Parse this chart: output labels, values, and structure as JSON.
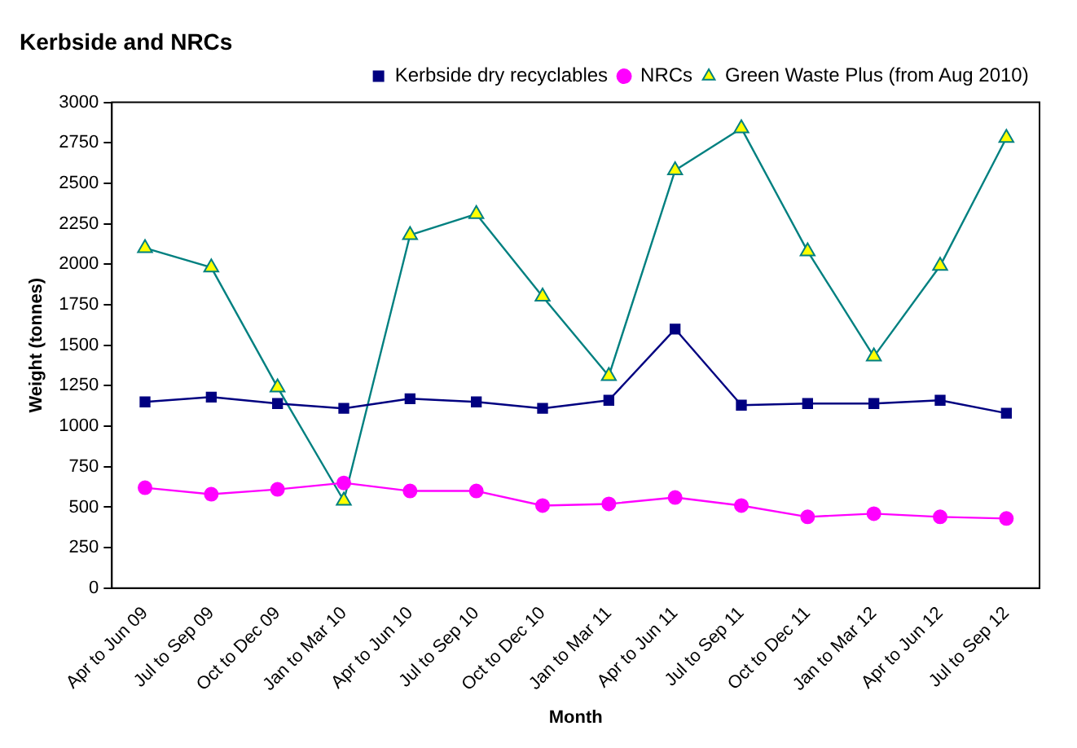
{
  "chart_data": {
    "type": "line",
    "title": "Kerbside and NRCs",
    "xlabel": "Month",
    "ylabel": "Weight (tonnes)",
    "categories": [
      "Apr to Jun 09",
      "Jul to Sep 09",
      "Oct to Dec 09",
      "Jan to Mar 10",
      "Apr to Jun 10",
      "Jul to Sep 10",
      "Oct to Dec 10",
      "Jan to Mar 11",
      "Apr to Jun 11",
      "Jul to Sep 11",
      "Oct to Dec 11",
      "Jan to Mar 12",
      "Apr to Jun 12",
      "Jul to Sep 12"
    ],
    "series": [
      {
        "name": "Kerbside dry recyclables",
        "color": "#000080",
        "marker": "square",
        "values": [
          1150,
          1180,
          1140,
          1110,
          1170,
          1150,
          1110,
          1160,
          1600,
          1130,
          1140,
          1140,
          1160,
          1080
        ]
      },
      {
        "name": "NRCs",
        "color": "#ff00ff",
        "marker": "circle",
        "values": [
          620,
          580,
          610,
          650,
          600,
          600,
          510,
          520,
          560,
          510,
          440,
          460,
          440,
          430
        ]
      },
      {
        "name": "Green Waste Plus (from Aug 2010)",
        "color": "#008080",
        "marker": "triangle",
        "values": [
          2100,
          1980,
          1240,
          540,
          2180,
          2310,
          1800,
          1310,
          2580,
          2840,
          2080,
          1430,
          1990,
          2780
        ]
      }
    ],
    "ylim": [
      0,
      3000
    ],
    "yticks": [
      0,
      250,
      500,
      750,
      1000,
      1250,
      1500,
      1750,
      2000,
      2250,
      2500,
      2750,
      3000
    ],
    "grid": false,
    "legend": "top right"
  }
}
